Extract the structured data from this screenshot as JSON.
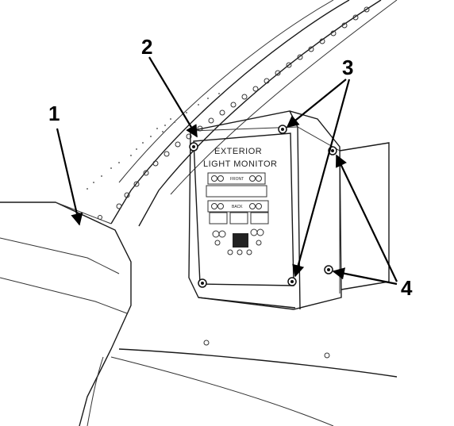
{
  "panel": {
    "title_line1": "EXTERIOR",
    "title_line2": "LIGHT MONITOR",
    "front_label": "FRONT",
    "back_label": "BACK"
  },
  "callouts": [
    "1",
    "2",
    "3",
    "4"
  ]
}
